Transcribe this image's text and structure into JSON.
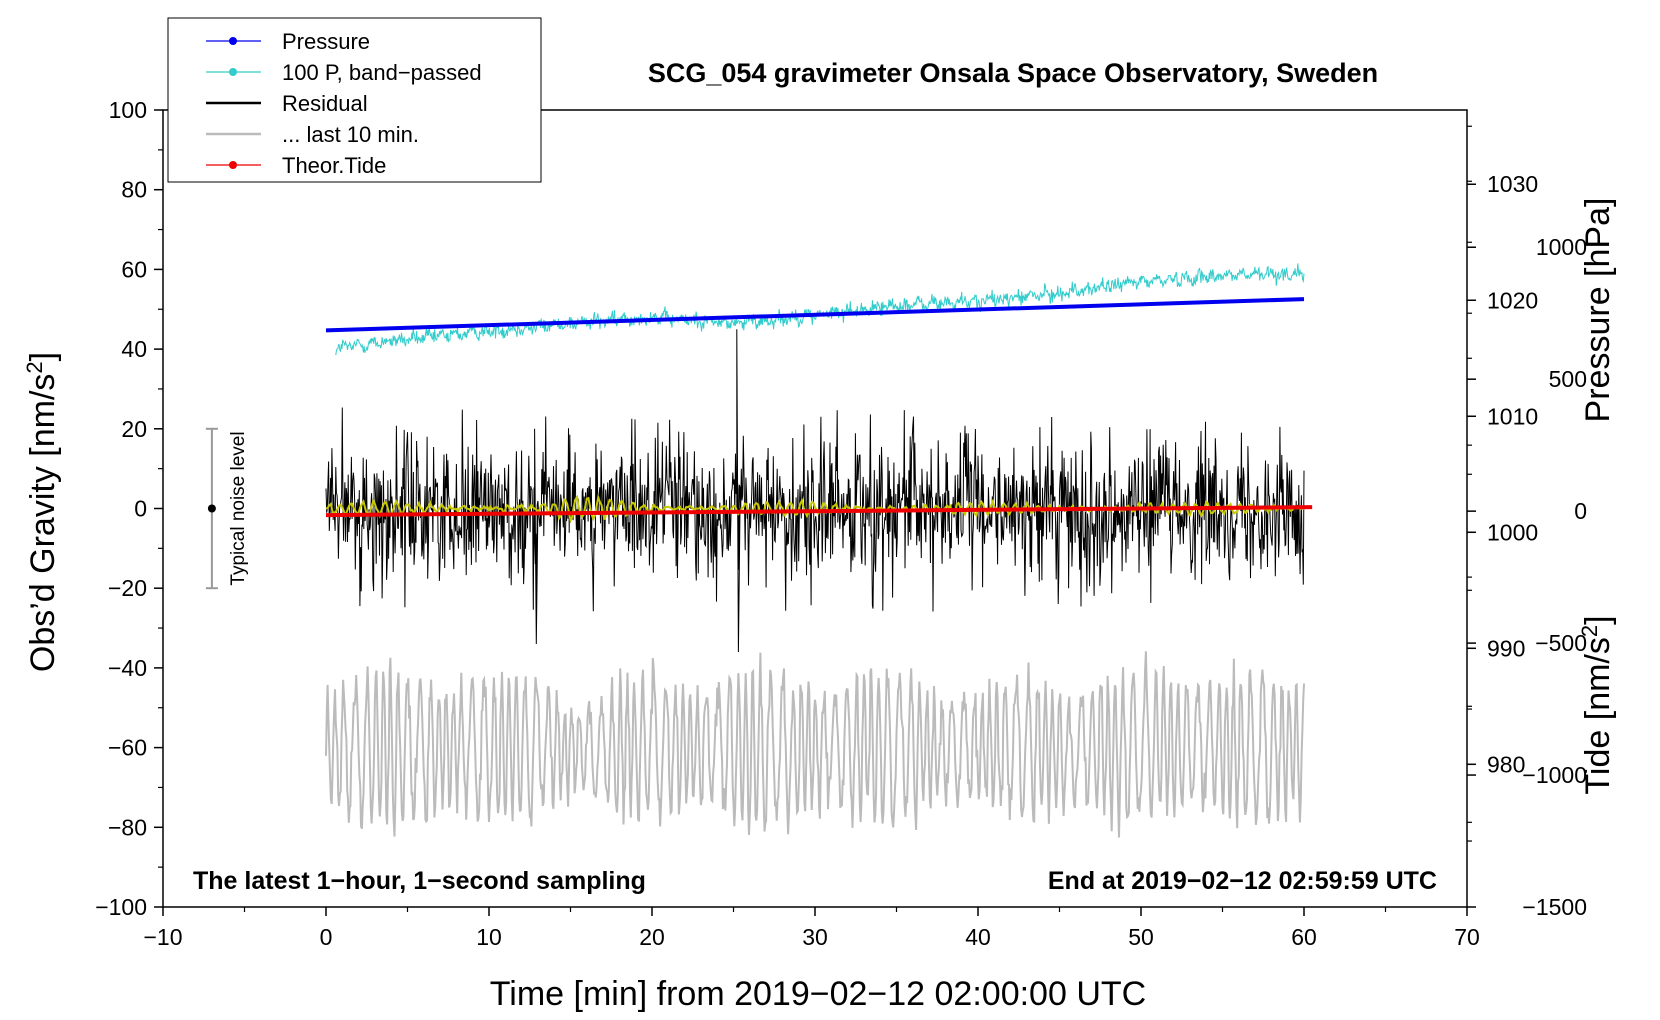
{
  "chart_data": {
    "type": "line",
    "title": "SCG_054 gravimeter Onsala Space Observatory, Sweden",
    "xlabel": "Time [min] from 2019−02−12 02:00:00 UTC",
    "ylabel_main": "Obs’d Gravity [nm/s",
    "ylabel_main_sup": "2",
    "ylabel_main_tail": "]",
    "ylabel_pressure": "Pressure [hPa]",
    "ylabel_tide": "Tide [nm/s",
    "ylabel_tide_sup": "2",
    "ylabel_tide_tail": "]",
    "xlim": [
      -10,
      70
    ],
    "ylim": [
      -100,
      100
    ],
    "x_ticks": [
      {
        "value": -10,
        "label": "−10"
      },
      {
        "value": 0,
        "label": "0"
      },
      {
        "value": 10,
        "label": "10"
      },
      {
        "value": 20,
        "label": "20"
      },
      {
        "value": 30,
        "label": "30"
      },
      {
        "value": 40,
        "label": "40"
      },
      {
        "value": 50,
        "label": "50"
      },
      {
        "value": 60,
        "label": "60"
      },
      {
        "value": 70,
        "label": "70"
      }
    ],
    "y_ticks": [
      {
        "value": 100,
        "label": "100"
      },
      {
        "value": 80,
        "label": "80"
      },
      {
        "value": 60,
        "label": "60"
      },
      {
        "value": 40,
        "label": "40"
      },
      {
        "value": 20,
        "label": "20"
      },
      {
        "value": 0,
        "label": "0"
      },
      {
        "value": -20,
        "label": "−20"
      },
      {
        "value": -40,
        "label": "−40"
      },
      {
        "value": -60,
        "label": "−60"
      },
      {
        "value": -80,
        "label": "−80"
      },
      {
        "value": -100,
        "label": "−100"
      }
    ],
    "pressure_axis": {
      "ylim": [
        967.7,
        1036.4
      ],
      "ticks": [
        {
          "value": 1030,
          "label": "1030"
        },
        {
          "value": 1020,
          "label": "1020"
        },
        {
          "value": 1010,
          "label": "1010"
        },
        {
          "value": 1000,
          "label": "1000"
        },
        {
          "value": 990,
          "label": "990"
        },
        {
          "value": 980,
          "label": "980"
        }
      ]
    },
    "tide_axis": {
      "ylim": [
        -1500,
        1520
      ],
      "ticks": [
        {
          "value": 1000,
          "label": "1000"
        },
        {
          "value": 500,
          "label": "500"
        },
        {
          "value": 0,
          "label": "0"
        },
        {
          "value": -500,
          "label": "−500"
        },
        {
          "value": -1000,
          "label": "−1000"
        },
        {
          "value": -1500,
          "label": "−1500"
        }
      ]
    },
    "legend": {
      "position": "top-left",
      "entries": [
        {
          "label": "Pressure",
          "color": "#0000ee",
          "marker": true
        },
        {
          "label": "100 P, band−passed",
          "color": "#33cccc",
          "marker": true
        },
        {
          "label": "Residual",
          "color": "#000000",
          "marker": false
        },
        {
          "label": "... last 10 min.",
          "color": "#bbbbbb",
          "marker": false
        },
        {
          "label": "Theor.Tide",
          "color": "#ee0000",
          "marker": true
        }
      ]
    },
    "annotations": {
      "noise_label": "Typical noise level",
      "noise_range": [
        -20,
        20
      ],
      "noise_x": -7,
      "bottom_left": "The latest 1−hour, 1−second sampling",
      "bottom_right": "End at 2019−02−12 02:59:59 UTC"
    },
    "series": [
      {
        "name": "Pressure",
        "color": "#0000ee",
        "axis": "pressure",
        "x_range": [
          0,
          60
        ],
        "start": 1017.4,
        "end": 1020.1
      },
      {
        "name": "100 P, band−passed",
        "color": "#33cccc",
        "axis": "gravity",
        "x": [
          0,
          5,
          10,
          15,
          20,
          25,
          30,
          35,
          40,
          45,
          50,
          55,
          60
        ],
        "trend": [
          40,
          42.5,
          44.5,
          46.5,
          48,
          46.5,
          48.5,
          51,
          52,
          54,
          57,
          58.5,
          59
        ]
      },
      {
        "name": "Residual",
        "color": "#000000",
        "axis": "gravity",
        "x_range": [
          0,
          60
        ],
        "typical_range": [
          -13,
          13
        ],
        "spikes": [
          {
            "x": 25.2,
            "max": 45,
            "min": -36
          },
          {
            "x": 12.8,
            "max": 20,
            "min": -34
          }
        ]
      },
      {
        "name": "Residual (smoothed)",
        "color": "#c8c800",
        "axis": "gravity",
        "x_range": [
          0,
          60
        ],
        "amplitude": 1.5
      },
      {
        "name": "... last 10 min.",
        "color": "#bbbbbb",
        "axis": "gravity",
        "x_range": [
          0,
          60
        ],
        "center": -60,
        "extremes": [
          -33,
          -87
        ]
      },
      {
        "name": "Theor.Tide",
        "color": "#ee0000",
        "axis": "tide",
        "x_range": [
          0,
          60.5
        ],
        "start": -15,
        "end": 15
      }
    ]
  }
}
